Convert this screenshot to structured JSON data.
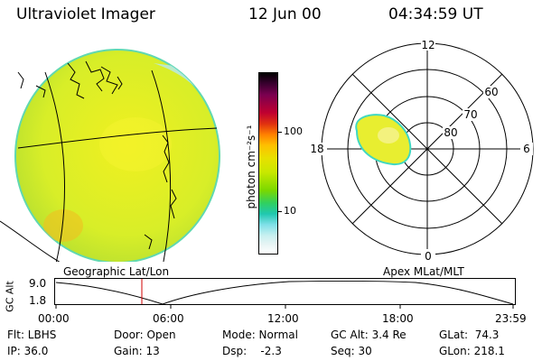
{
  "header": {
    "title": "Ultraviolet Imager",
    "date": "12 Jun 00",
    "time": "04:34:59 UT"
  },
  "colorbar": {
    "unit_label": "photon cm⁻²s⁻¹",
    "ticks": [
      "100",
      "10"
    ],
    "colors": [
      "#000000",
      "#3a0030",
      "#7a0050",
      "#c00030",
      "#e03010",
      "#ff8000",
      "#ffc000",
      "#e8e000",
      "#c8e800",
      "#7ad800",
      "#30d060",
      "#20c8b0",
      "#80e0e8",
      "#c8f0f0",
      "#e8f4f4",
      "#ffffff"
    ]
  },
  "left_panel": {
    "caption": "Geographic Lat/Lon"
  },
  "right_panel": {
    "caption": "Apex MLat/MLT",
    "mlt_labels": {
      "top": "12",
      "left": "18",
      "right": "6",
      "bottom": "0"
    },
    "lat_labels": [
      "60",
      "70",
      "80"
    ]
  },
  "altitude_plot": {
    "axis_label": "GC Alt",
    "y_ticks": [
      "9.0",
      "1.8"
    ],
    "x_ticks": [
      "00:00",
      "06:00",
      "12:00",
      "18:00",
      "23:59"
    ]
  },
  "info": {
    "filter": "Flt: LBHS",
    "ip": "IP: 36.0",
    "door": "Door: Open",
    "gain": "Gain: 13",
    "mode": "Mode: Normal",
    "dsp": "Dsp:    -2.3",
    "gc_alt": "GC Alt: 3.4 Re",
    "seq": "Seq: 30",
    "glat": "GLat:  74.3",
    "glon": "GLon: 218.1"
  }
}
